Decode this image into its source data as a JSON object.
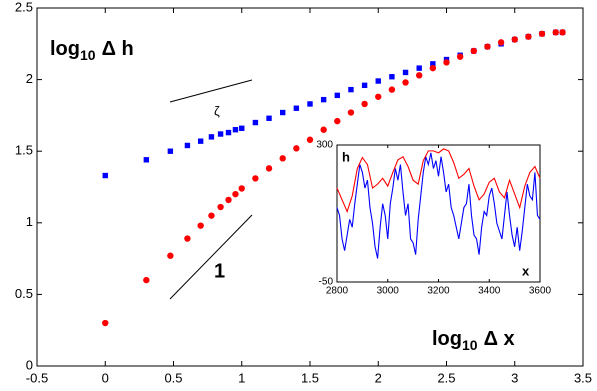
{
  "chart_data": [
    {
      "type": "scatter",
      "x": [
        0,
        0.301,
        0.477,
        0.602,
        0.699,
        0.778,
        0.845,
        0.903,
        0.954,
        1,
        1.1,
        1.2,
        1.3,
        1.4,
        1.5,
        1.6,
        1.7,
        1.8,
        1.9,
        2.0,
        2.1,
        2.2,
        2.3,
        2.4,
        2.5,
        2.6,
        2.7,
        2.8,
        2.9,
        3.0,
        3.1,
        3.2,
        3.3,
        3.35
      ],
      "series": [
        {
          "color": "#0000ff",
          "marker": "square",
          "values": [
            1.33,
            1.44,
            1.5,
            1.54,
            1.57,
            1.6,
            1.62,
            1.63,
            1.65,
            1.66,
            1.7,
            1.73,
            1.77,
            1.8,
            1.83,
            1.86,
            1.89,
            1.93,
            1.96,
            1.99,
            2.02,
            2.05,
            2.08,
            2.11,
            2.14,
            2.17,
            2.2,
            2.23,
            2.25,
            2.28,
            2.3,
            2.32,
            2.33,
            2.33
          ]
        },
        {
          "color": "#ff0000",
          "marker": "circle",
          "values": [
            0.3,
            0.6,
            0.77,
            0.89,
            0.98,
            1.05,
            1.11,
            1.16,
            1.2,
            1.24,
            1.31,
            1.38,
            1.45,
            1.52,
            1.58,
            1.65,
            1.71,
            1.77,
            1.83,
            1.88,
            1.93,
            1.98,
            2.03,
            2.08,
            2.12,
            2.16,
            2.2,
            2.23,
            2.26,
            2.28,
            2.3,
            2.32,
            2.33,
            2.33
          ]
        }
      ],
      "xlim": [
        -0.5,
        3.5
      ],
      "xticks": [
        -0.5,
        0,
        0.5,
        1,
        1.5,
        2,
        2.5,
        3,
        3.5
      ],
      "ylim": [
        0,
        2.5
      ],
      "yticks": [
        0,
        0.5,
        1,
        1.5,
        2,
        2.5
      ],
      "y_label": [
        "log",
        "10",
        "Δ h"
      ],
      "x_label": [
        "log",
        "10",
        "Δ x"
      ],
      "annotations": [
        "ζ",
        "1"
      ]
    },
    {
      "type": "line",
      "series": [
        {
          "color": "#0000ff",
          "x": [
            2800,
            2810,
            2820,
            2830,
            2840,
            2850,
            2860,
            2870,
            2880,
            2890,
            2900,
            2910,
            2920,
            2930,
            2940,
            2950,
            2960,
            2970,
            2980,
            2990,
            3000,
            3010,
            3020,
            3030,
            3040,
            3050,
            3060,
            3070,
            3080,
            3090,
            3100,
            3110,
            3120,
            3130,
            3140,
            3150,
            3160,
            3170,
            3180,
            3190,
            3200,
            3210,
            3220,
            3230,
            3240,
            3250,
            3260,
            3270,
            3280,
            3290,
            3300,
            3310,
            3320,
            3330,
            3340,
            3350,
            3360,
            3370,
            3380,
            3390,
            3400,
            3410,
            3420,
            3430,
            3440,
            3450,
            3460,
            3470,
            3480,
            3490,
            3500,
            3510,
            3520,
            3530,
            3540,
            3550,
            3560,
            3570,
            3580,
            3590,
            3600
          ],
          "values": [
            140,
            120,
            60,
            30,
            70,
            110,
            90,
            150,
            200,
            250,
            230,
            190,
            210,
            140,
            100,
            40,
            10,
            90,
            150,
            120,
            60,
            150,
            190,
            240,
            210,
            250,
            180,
            120,
            150,
            60,
            50,
            20,
            110,
            170,
            230,
            270,
            250,
            280,
            240,
            260,
            220,
            270,
            230,
            180,
            200,
            140,
            120,
            90,
            60,
            100,
            140,
            150,
            200,
            120,
            70,
            60,
            20,
            90,
            130,
            120,
            170,
            190,
            150,
            100,
            80,
            60,
            120,
            180,
            120,
            70,
            40,
            90,
            30,
            80,
            140,
            200,
            170,
            160,
            230,
            120,
            110
          ]
        },
        {
          "color": "#ff0000",
          "x": [
            2800,
            2820,
            2840,
            2860,
            2880,
            2900,
            2920,
            2940,
            2960,
            2980,
            3000,
            3020,
            3040,
            3060,
            3080,
            3100,
            3120,
            3140,
            3160,
            3180,
            3200,
            3220,
            3240,
            3260,
            3280,
            3300,
            3320,
            3340,
            3360,
            3380,
            3400,
            3420,
            3440,
            3460,
            3480,
            3500,
            3520,
            3540,
            3560,
            3580,
            3600
          ],
          "values": [
            190,
            160,
            130,
            170,
            240,
            268,
            250,
            190,
            200,
            215,
            195,
            230,
            262,
            270,
            245,
            210,
            200,
            260,
            285,
            285,
            280,
            290,
            285,
            255,
            215,
            225,
            240,
            195,
            160,
            175,
            205,
            215,
            180,
            165,
            210,
            175,
            140,
            195,
            230,
            245,
            215
          ]
        }
      ],
      "xlim": [
        2800,
        3600
      ],
      "xticks": [
        2800,
        3000,
        3200,
        3400,
        3600
      ],
      "ylim": [
        -50,
        300
      ],
      "yticks": [
        -50,
        300
      ],
      "y_label": "h",
      "x_label": "x"
    }
  ]
}
